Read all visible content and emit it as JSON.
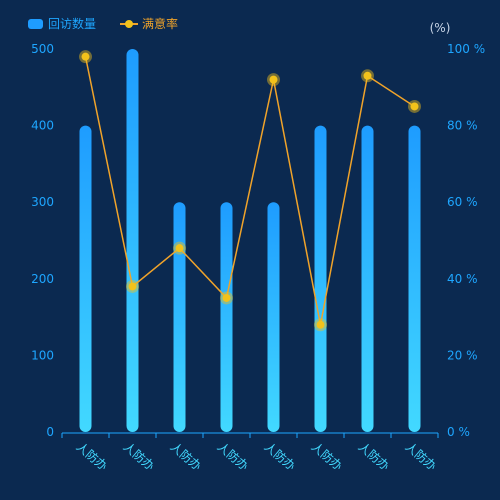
{
  "colors": {
    "background": "#0b2950",
    "bar_top": "#1e9cff",
    "bar_bottom": "#42d9ff",
    "line": "#f0a32a",
    "point": "#f2c21b",
    "axis_text": "#1ea6ff",
    "legend_text": "#1ea6ff",
    "legend_line_text": "#f0a32a",
    "unit_text": "#c7d4e6"
  },
  "chart_data": {
    "type": "bar",
    "categories": [
      "人防办",
      "人防办",
      "人防办",
      "人防办",
      "人防办",
      "人防办",
      "人防办",
      "人防办"
    ],
    "series": [
      {
        "name": "回访数量",
        "type": "bar",
        "axis": "left",
        "values": [
          400,
          500,
          300,
          300,
          300,
          400,
          400,
          400
        ]
      },
      {
        "name": "满意率",
        "type": "line",
        "axis": "right",
        "values": [
          98,
          38,
          48,
          35,
          92,
          28,
          93,
          85
        ]
      }
    ],
    "y_left": {
      "range": [
        0,
        500
      ],
      "ticks": [
        0,
        100,
        200,
        300,
        400,
        500
      ],
      "tick_labels": [
        "0",
        "100",
        "200",
        "300",
        "400",
        "500"
      ]
    },
    "y_right": {
      "range": [
        0,
        100
      ],
      "ticks": [
        0,
        20,
        40,
        60,
        80,
        100
      ],
      "tick_labels": [
        "0 %",
        "20 %",
        "40 %",
        "60 %",
        "80 %",
        "100 %"
      ],
      "unit": "(%)"
    },
    "legend": {
      "placement": "top-left",
      "items": [
        {
          "label": "回访数量",
          "kind": "bar"
        },
        {
          "label": "满意率",
          "kind": "line"
        }
      ]
    },
    "grid": false
  }
}
